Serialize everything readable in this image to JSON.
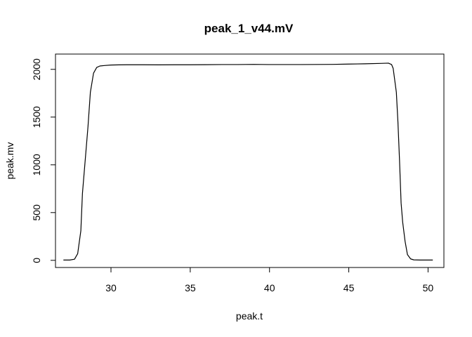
{
  "chart_data": {
    "type": "line",
    "title": "peak_1_v44.mV",
    "xlabel": "peak.t",
    "ylabel": "peak.mv",
    "xlim": [
      26.5,
      51.0
    ],
    "ylim": [
      -75,
      2160
    ],
    "xticks": [
      30,
      35,
      40,
      45,
      50
    ],
    "yticks": [
      0,
      500,
      1000,
      1500,
      2000
    ],
    "grid": false,
    "legend": "none",
    "line_color": "#000000",
    "series": [
      {
        "x": [
          27.0,
          27.4,
          27.7,
          27.9,
          28.1,
          28.2,
          28.4,
          28.55,
          28.7,
          28.9,
          29.1,
          29.3,
          29.6,
          30.0,
          30.5,
          31.0,
          32.0,
          33.0,
          34.0,
          35.0,
          36.0,
          37.0,
          38.0,
          39.0,
          40.0,
          41.0,
          42.0,
          43.0,
          44.0,
          45.0,
          46.0,
          47.0,
          47.5,
          47.7,
          47.8,
          48.0,
          48.1,
          48.2,
          48.3,
          48.4,
          48.55,
          48.7,
          48.9,
          49.1,
          49.5,
          50.0,
          50.3
        ],
        "y": [
          3,
          3,
          12,
          70,
          310,
          700,
          1100,
          1400,
          1760,
          1960,
          2020,
          2035,
          2040,
          2045,
          2047,
          2048,
          2048,
          2047,
          2048,
          2048,
          2049,
          2050,
          2050,
          2052,
          2050,
          2050,
          2050,
          2051,
          2052,
          2055,
          2058,
          2062,
          2065,
          2050,
          2010,
          1760,
          1450,
          1050,
          600,
          400,
          200,
          60,
          15,
          5,
          3,
          3,
          3
        ]
      }
    ]
  }
}
